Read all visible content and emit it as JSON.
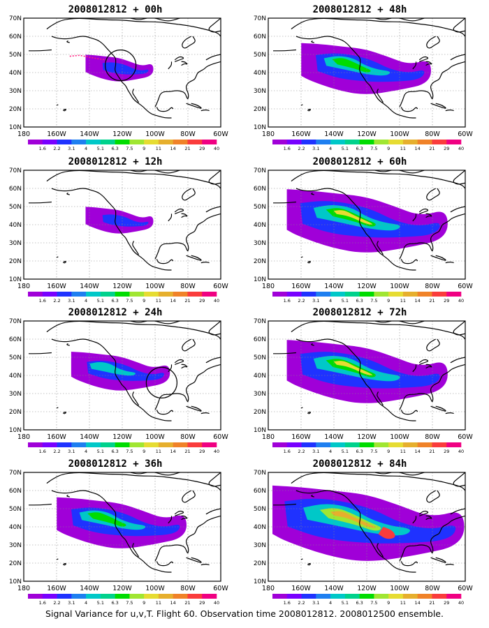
{
  "caption": "Signal Variance for u,v,T. Flight 60. Observation time 2008012812. 2008012500 ensemble.",
  "lat_labels": [
    "70N",
    "60N",
    "50N",
    "40N",
    "30N",
    "20N",
    "10N"
  ],
  "lon_labels": [
    "180",
    "160W",
    "140W",
    "120W",
    "100W",
    "80W",
    "60W"
  ],
  "colorbar": {
    "labels": [
      "1.6",
      "2.2",
      "3.1",
      "4",
      "5.1",
      "6.3",
      "7.5",
      "9",
      "11",
      "14",
      "21",
      "29",
      "40"
    ],
    "colors": [
      "#a000d8",
      "#7800ff",
      "#1f32ff",
      "#1e7ff0",
      "#00c8c8",
      "#00d28c",
      "#00dc00",
      "#a0e632",
      "#e6dc32",
      "#e6af2d",
      "#f08228",
      "#fa3c3c",
      "#f00082"
    ]
  },
  "panels": [
    {
      "title": "2008012812 + 00h",
      "level": 0
    },
    {
      "title": "2008012812 + 48h",
      "level": 2
    },
    {
      "title": "2008012812 + 12h",
      "level": 0
    },
    {
      "title": "2008012812 + 60h",
      "level": 3
    },
    {
      "title": "2008012812 + 24h",
      "level": 1
    },
    {
      "title": "2008012812 + 72h",
      "level": 3
    },
    {
      "title": "2008012812 + 36h",
      "level": 2
    },
    {
      "title": "2008012812 + 84h",
      "level": 4
    }
  ]
}
